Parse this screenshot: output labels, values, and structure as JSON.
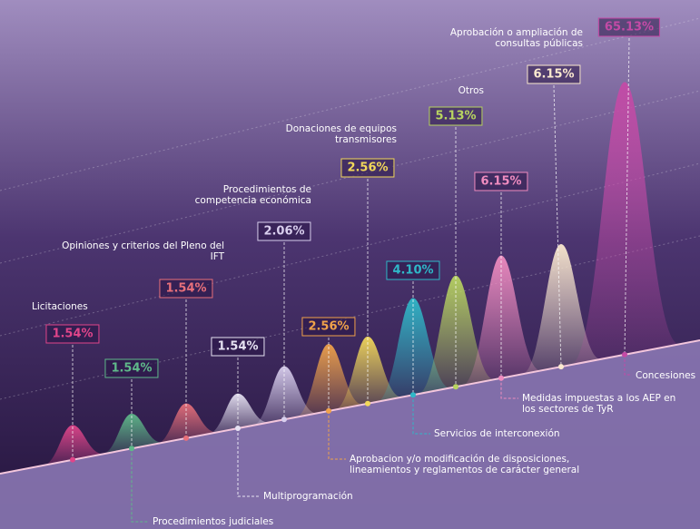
{
  "chart_data": {
    "type": "peaks",
    "categories": [
      "Licitaciones",
      "Procedimientos judiciales",
      "Opiniones y criterios del Pleno del IFT",
      "Multiprogramación",
      "Procedimientos de competencia económica",
      "Aprobacion y/o modificación de disposiciones, lineamientos y reglamentos de carácter general",
      "Donaciones de equipos transmisores",
      "Servicios de interconexión",
      "Otros",
      "Medidas impuestas a los AEP en los sectores de TyR",
      "Aprobación o ampliación de consultas públicas",
      "Concesiones"
    ],
    "values": [
      1.54,
      1.54,
      1.54,
      1.54,
      2.06,
      2.56,
      2.56,
      4.1,
      5.13,
      6.15,
      6.15,
      65.13
    ],
    "value_labels": [
      "1.54%",
      "1.54%",
      "1.54%",
      "1.54%",
      "2.06%",
      "2.56%",
      "2.56%",
      "4.10%",
      "5.13%",
      "6.15%",
      "6.15%",
      "65.13%"
    ],
    "colors": [
      "#e0458a",
      "#5fb98a",
      "#e8707a",
      "#e6e2f2",
      "#d9cfee",
      "#f0a24a",
      "#f2d85a",
      "#2fb8c8",
      "#b8d460",
      "#f08cc0",
      "#fbe9cf",
      "#c44aa6"
    ]
  }
}
